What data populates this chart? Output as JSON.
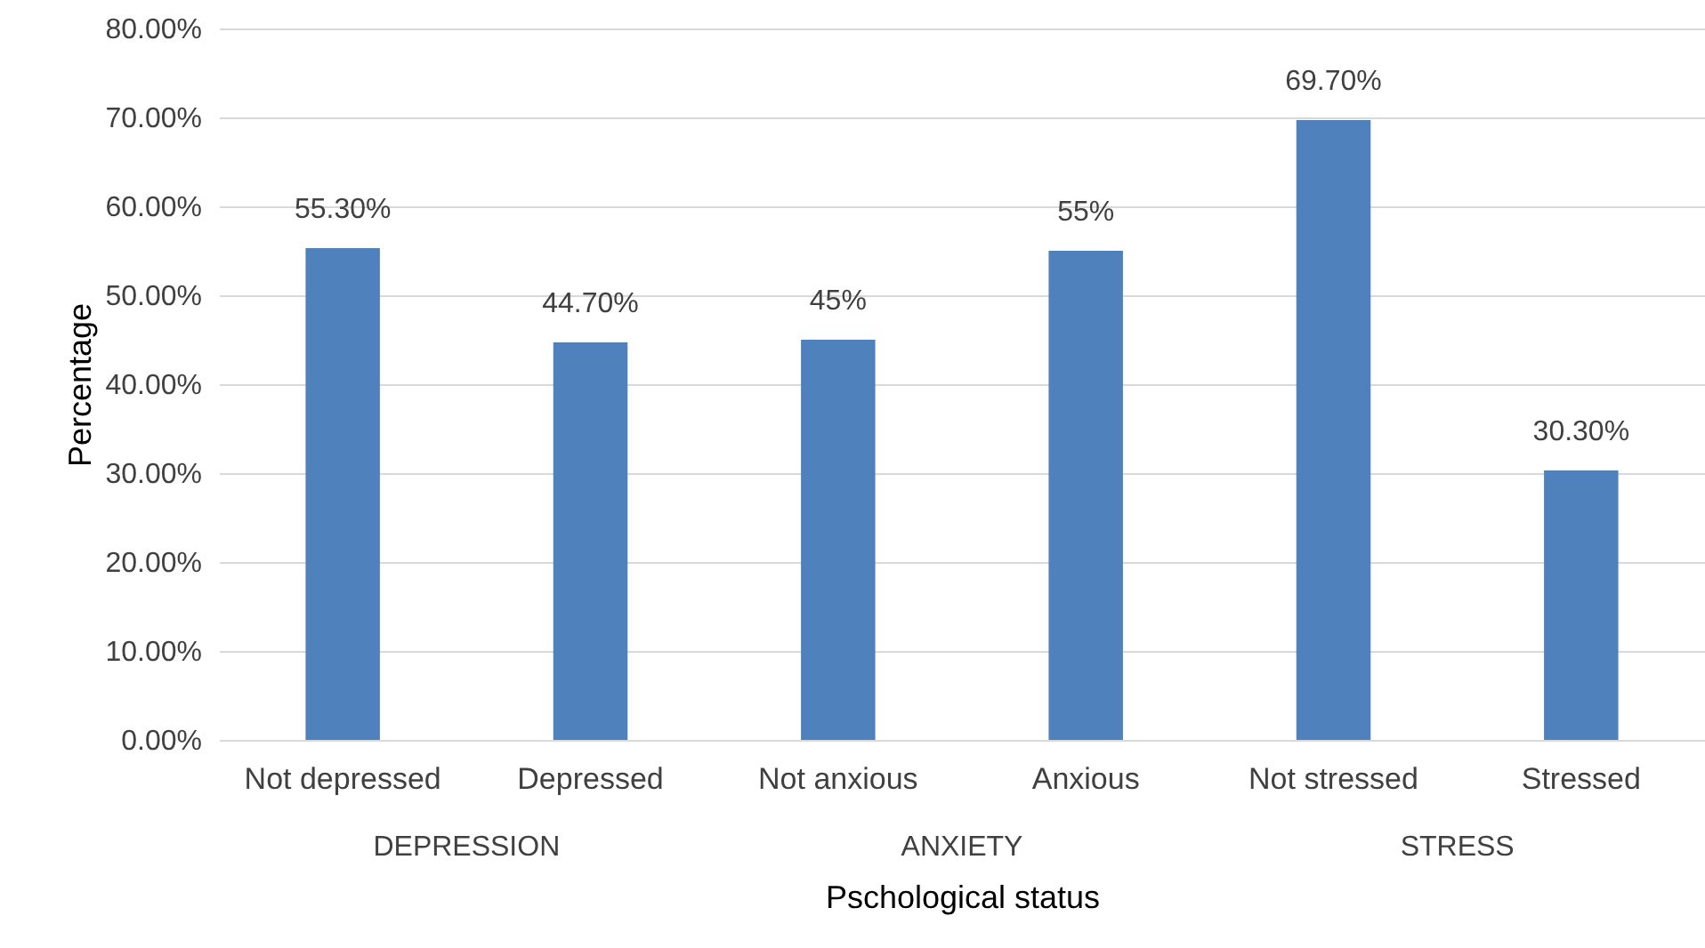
{
  "chart_data": {
    "type": "bar",
    "xlabel": "Pschological status",
    "ylabel": "Percentage",
    "categories": [
      "Not depressed",
      "Depressed",
      "Not anxious",
      "Anxious",
      "Not stressed",
      "Stressed"
    ],
    "values": [
      55.3,
      44.7,
      45,
      55,
      69.7,
      30.3
    ],
    "value_labels": [
      "55.30%",
      "44.70%",
      "45%",
      "55%",
      "69.70%",
      "30.30%"
    ],
    "color": "#4f81bd",
    "ylim": [
      0,
      80
    ],
    "yticks": [
      {
        "value": 0,
        "label": "0.00%"
      },
      {
        "value": 10,
        "label": "10.00%"
      },
      {
        "value": 20,
        "label": "20.00%"
      },
      {
        "value": 30,
        "label": "30.00%"
      },
      {
        "value": 40,
        "label": "40.00%"
      },
      {
        "value": 50,
        "label": "50.00%"
      },
      {
        "value": 60,
        "label": "60.00%"
      },
      {
        "value": 70,
        "label": "70.00%"
      },
      {
        "value": 80,
        "label": "80.00%"
      }
    ],
    "grid": "y",
    "annotations": [
      "DEPRESSION",
      "ANXIETY",
      "STRESS"
    ]
  }
}
